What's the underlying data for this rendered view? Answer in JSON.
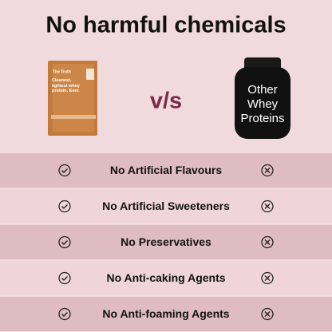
{
  "header": {
    "title": "No harmful chemicals"
  },
  "comparison": {
    "left": {
      "brand": "The Truth",
      "tagline": "Cleanest, lightest whey protein. Ever."
    },
    "versus": "v/s",
    "right": {
      "label_lines": [
        "Other",
        "Whey",
        "Proteins"
      ]
    }
  },
  "rows": [
    "No Artificial Flavours",
    "No Artificial Sweeteners",
    "No Preservatives",
    "No Anti-caking Agents",
    "No Anti-foaming Agents"
  ]
}
